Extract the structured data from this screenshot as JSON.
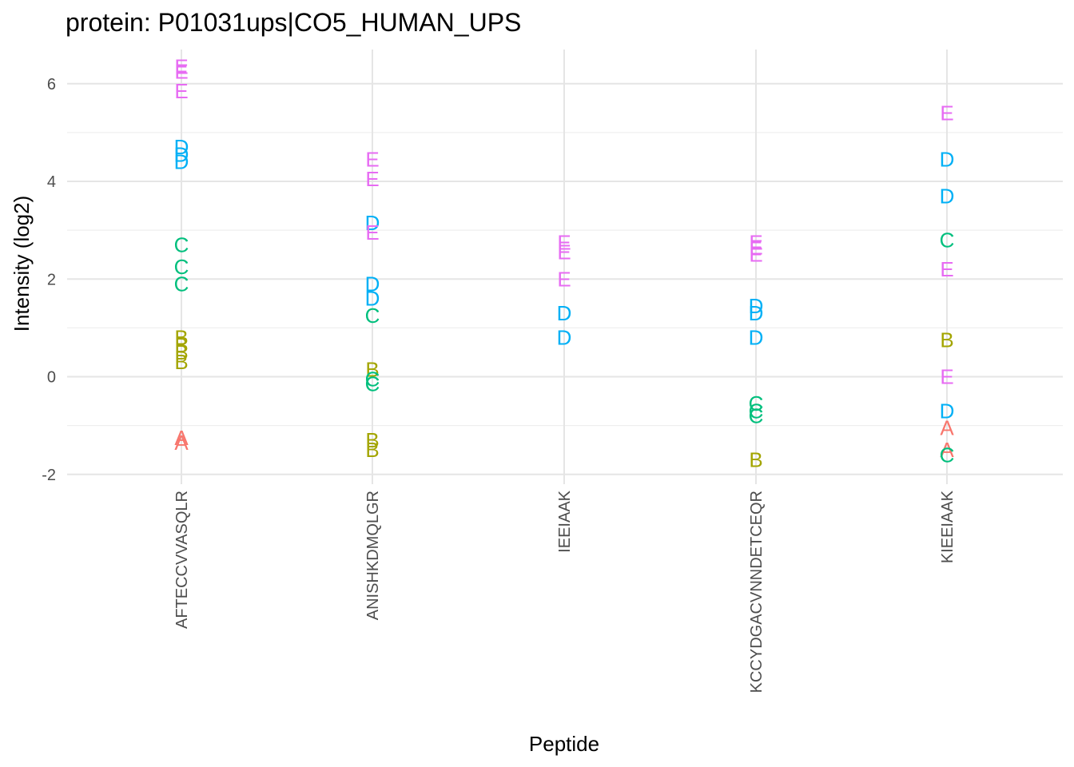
{
  "chart_data": {
    "type": "scatter",
    "title": "protein: P01031ups|CO5_HUMAN_UPS",
    "xlabel": "Peptide",
    "ylabel": "Intensity (log2)",
    "ylim": [
      -2.2,
      6.7
    ],
    "yticks": [
      -2,
      0,
      2,
      4,
      6
    ],
    "grid": true,
    "categories": [
      "AFTECCVVASQLR",
      "ANISHKDMQLGR",
      "IEEIAAK",
      "KCCYDGACVNNDETCEQR",
      "KIEEIAAK"
    ],
    "colors": {
      "A": "#F8766D",
      "B": "#A3A500",
      "C": "#00BF7D",
      "D": "#00B0F6",
      "E": "#E76BF3"
    },
    "series": [
      {
        "name": "A",
        "points": [
          {
            "x": "AFTECCVVASQLR",
            "y": -1.25
          },
          {
            "x": "AFTECCVVASQLR",
            "y": -1.35
          },
          {
            "x": "KIEEIAAK",
            "y": -1.05
          },
          {
            "x": "KIEEIAAK",
            "y": -1.5
          }
        ]
      },
      {
        "name": "B",
        "points": [
          {
            "x": "AFTECCVVASQLR",
            "y": 0.8
          },
          {
            "x": "AFTECCVVASQLR",
            "y": 0.65
          },
          {
            "x": "AFTECCVVASQLR",
            "y": 0.5
          },
          {
            "x": "AFTECCVVASQLR",
            "y": 0.3
          },
          {
            "x": "ANISHKDMQLGR",
            "y": 0.15
          },
          {
            "x": "ANISHKDMQLGR",
            "y": -1.3
          },
          {
            "x": "ANISHKDMQLGR",
            "y": -1.5
          },
          {
            "x": "KCCYDGACVNNDETCEQR",
            "y": -1.7
          },
          {
            "x": "KIEEIAAK",
            "y": 0.75
          }
        ]
      },
      {
        "name": "C",
        "points": [
          {
            "x": "AFTECCVVASQLR",
            "y": 2.7
          },
          {
            "x": "AFTECCVVASQLR",
            "y": 2.25
          },
          {
            "x": "AFTECCVVASQLR",
            "y": 1.9
          },
          {
            "x": "ANISHKDMQLGR",
            "y": 1.25
          },
          {
            "x": "ANISHKDMQLGR",
            "y": -0.05
          },
          {
            "x": "ANISHKDMQLGR",
            "y": -0.15
          },
          {
            "x": "KCCYDGACVNNDETCEQR",
            "y": -0.55
          },
          {
            "x": "KCCYDGACVNNDETCEQR",
            "y": -0.7
          },
          {
            "x": "KCCYDGACVNNDETCEQR",
            "y": -0.8
          },
          {
            "x": "KIEEIAAK",
            "y": 2.8
          },
          {
            "x": "KIEEIAAK",
            "y": -1.6
          }
        ]
      },
      {
        "name": "D",
        "points": [
          {
            "x": "AFTECCVVASQLR",
            "y": 4.7
          },
          {
            "x": "AFTECCVVASQLR",
            "y": 4.55
          },
          {
            "x": "AFTECCVVASQLR",
            "y": 4.4
          },
          {
            "x": "ANISHKDMQLGR",
            "y": 3.15
          },
          {
            "x": "ANISHKDMQLGR",
            "y": 1.9
          },
          {
            "x": "ANISHKDMQLGR",
            "y": 1.6
          },
          {
            "x": "IEEIAAK",
            "y": 1.3
          },
          {
            "x": "IEEIAAK",
            "y": 0.8
          },
          {
            "x": "KCCYDGACVNNDETCEQR",
            "y": 1.45
          },
          {
            "x": "KCCYDGACVNNDETCEQR",
            "y": 1.3
          },
          {
            "x": "KCCYDGACVNNDETCEQR",
            "y": 0.8
          },
          {
            "x": "KIEEIAAK",
            "y": 4.45
          },
          {
            "x": "KIEEIAAK",
            "y": 3.7
          },
          {
            "x": "KIEEIAAK",
            "y": -0.7
          }
        ]
      },
      {
        "name": "E",
        "points": [
          {
            "x": "AFTECCVVASQLR",
            "y": 6.35
          },
          {
            "x": "AFTECCVVASQLR",
            "y": 6.25
          },
          {
            "x": "AFTECCVVASQLR",
            "y": 5.85
          },
          {
            "x": "ANISHKDMQLGR",
            "y": 4.45
          },
          {
            "x": "ANISHKDMQLGR",
            "y": 4.05
          },
          {
            "x": "ANISHKDMQLGR",
            "y": 2.95
          },
          {
            "x": "IEEIAAK",
            "y": 2.75
          },
          {
            "x": "IEEIAAK",
            "y": 2.55
          },
          {
            "x": "IEEIAAK",
            "y": 2.0
          },
          {
            "x": "KCCYDGACVNNDETCEQR",
            "y": 2.75
          },
          {
            "x": "KCCYDGACVNNDETCEQR",
            "y": 2.65
          },
          {
            "x": "KCCYDGACVNNDETCEQR",
            "y": 2.5
          },
          {
            "x": "KIEEIAAK",
            "y": 5.4
          },
          {
            "x": "KIEEIAAK",
            "y": 2.2
          },
          {
            "x": "KIEEIAAK",
            "y": 0.0
          }
        ]
      }
    ]
  }
}
